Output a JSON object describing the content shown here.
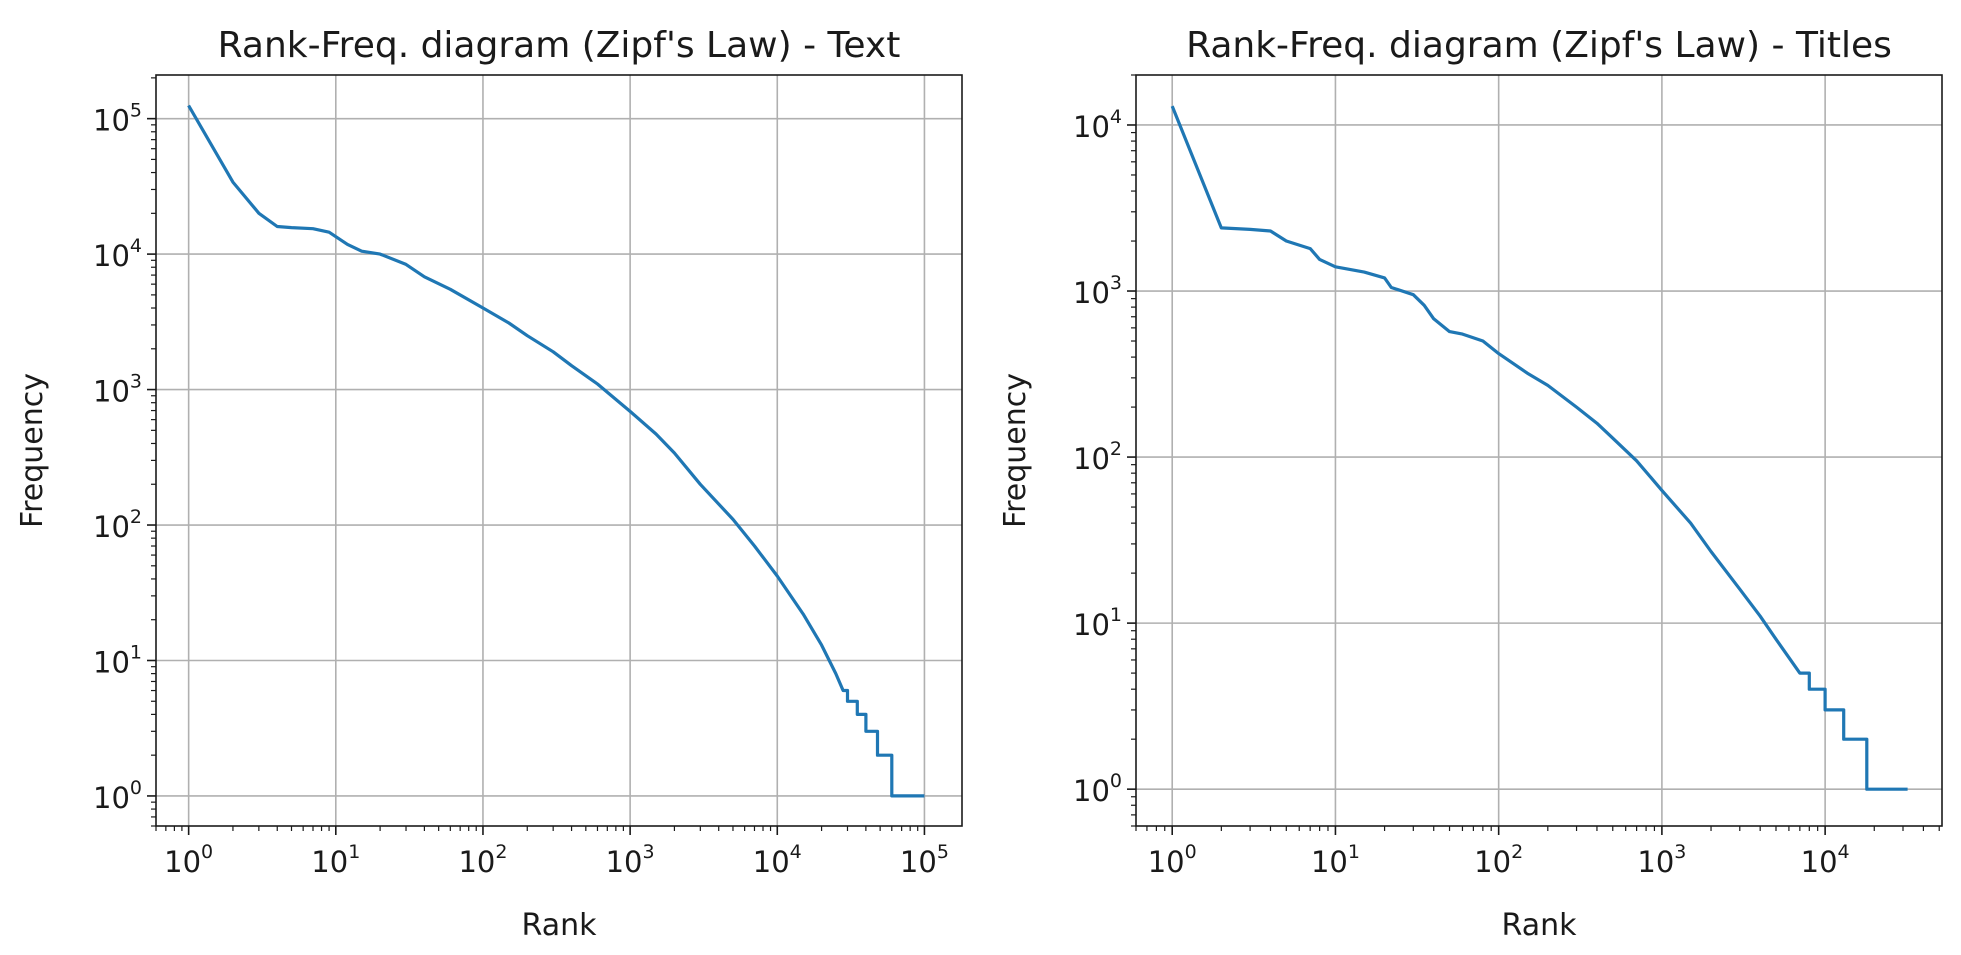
{
  "series_color": "#1f77b4",
  "chart_data": [
    {
      "type": "line",
      "title": "Rank-Freq. diagram (Zipf's Law) - Text",
      "xlabel": "Rank",
      "ylabel": "Frequency",
      "xscale": "log",
      "yscale": "log",
      "xlim": [
        0.6,
        180000
      ],
      "ylim": [
        0.6,
        210000
      ],
      "grid": true,
      "x_ticks": [
        {
          "base": "10",
          "exp": "0",
          "value": 1
        },
        {
          "base": "10",
          "exp": "1",
          "value": 10
        },
        {
          "base": "10",
          "exp": "2",
          "value": 100
        },
        {
          "base": "10",
          "exp": "3",
          "value": 1000
        },
        {
          "base": "10",
          "exp": "4",
          "value": 10000
        },
        {
          "base": "10",
          "exp": "5",
          "value": 100000
        }
      ],
      "y_ticks": [
        {
          "base": "10",
          "exp": "0",
          "value": 1
        },
        {
          "base": "10",
          "exp": "1",
          "value": 10
        },
        {
          "base": "10",
          "exp": "2",
          "value": 100
        },
        {
          "base": "10",
          "exp": "3",
          "value": 1000
        },
        {
          "base": "10",
          "exp": "4",
          "value": 10000
        },
        {
          "base": "10",
          "exp": "5",
          "value": 100000
        }
      ],
      "series": [
        {
          "points": [
            [
              1,
              125000
            ],
            [
              2,
              34000
            ],
            [
              3,
              20000
            ],
            [
              4,
              16000
            ],
            [
              5,
              15700
            ],
            [
              7,
              15400
            ],
            [
              9,
              14500
            ],
            [
              12,
              11800
            ],
            [
              15,
              10500
            ],
            [
              20,
              10000
            ],
            [
              30,
              8400
            ],
            [
              40,
              6800
            ],
            [
              60,
              5500
            ],
            [
              100,
              4000
            ],
            [
              150,
              3100
            ],
            [
              200,
              2500
            ],
            [
              300,
              1900
            ],
            [
              400,
              1500
            ],
            [
              600,
              1100
            ],
            [
              1000,
              690
            ],
            [
              1500,
              470
            ],
            [
              2000,
              340
            ],
            [
              3000,
              200
            ],
            [
              5000,
              110
            ],
            [
              7000,
              70
            ],
            [
              10000,
              42
            ],
            [
              15000,
              22
            ],
            [
              20000,
              13
            ],
            [
              25000,
              8
            ],
            [
              28000,
              6
            ],
            [
              30000,
              6
            ],
            [
              30000,
              5
            ],
            [
              35000,
              5
            ],
            [
              35000,
              4
            ],
            [
              40000,
              4
            ],
            [
              40000,
              3
            ],
            [
              48000,
              3
            ],
            [
              48000,
              2
            ],
            [
              60000,
              2
            ],
            [
              60000,
              1
            ],
            [
              100000,
              1
            ]
          ]
        }
      ]
    },
    {
      "type": "line",
      "title": "Rank-Freq. diagram (Zipf's Law) - Titles",
      "xlabel": "Rank",
      "ylabel": "Frequency",
      "xscale": "log",
      "yscale": "log",
      "xlim": [
        0.6,
        52000
      ],
      "ylim": [
        0.6,
        20000
      ],
      "grid": true,
      "x_ticks": [
        {
          "base": "10",
          "exp": "0",
          "value": 1
        },
        {
          "base": "10",
          "exp": "1",
          "value": 10
        },
        {
          "base": "10",
          "exp": "2",
          "value": 100
        },
        {
          "base": "10",
          "exp": "3",
          "value": 1000
        },
        {
          "base": "10",
          "exp": "4",
          "value": 10000
        }
      ],
      "y_ticks": [
        {
          "base": "10",
          "exp": "0",
          "value": 1
        },
        {
          "base": "10",
          "exp": "1",
          "value": 10
        },
        {
          "base": "10",
          "exp": "2",
          "value": 100
        },
        {
          "base": "10",
          "exp": "3",
          "value": 1000
        },
        {
          "base": "10",
          "exp": "4",
          "value": 10000
        }
      ],
      "series": [
        {
          "points": [
            [
              1,
              13000
            ],
            [
              2,
              2400
            ],
            [
              3,
              2350
            ],
            [
              4,
              2300
            ],
            [
              5,
              2000
            ],
            [
              7,
              1800
            ],
            [
              8,
              1550
            ],
            [
              10,
              1400
            ],
            [
              15,
              1300
            ],
            [
              20,
              1200
            ],
            [
              22,
              1050
            ],
            [
              30,
              950
            ],
            [
              35,
              820
            ],
            [
              40,
              680
            ],
            [
              50,
              570
            ],
            [
              60,
              550
            ],
            [
              80,
              500
            ],
            [
              100,
              420
            ],
            [
              150,
              320
            ],
            [
              200,
              270
            ],
            [
              300,
              200
            ],
            [
              400,
              160
            ],
            [
              500,
              130
            ],
            [
              700,
              95
            ],
            [
              1000,
              63
            ],
            [
              1500,
              40
            ],
            [
              2000,
              27
            ],
            [
              3000,
              16
            ],
            [
              4000,
              11
            ],
            [
              5000,
              8
            ],
            [
              7000,
              5
            ],
            [
              8000,
              5
            ],
            [
              8000,
              4
            ],
            [
              10000,
              4
            ],
            [
              10000,
              3
            ],
            [
              13000,
              3
            ],
            [
              13000,
              2
            ],
            [
              18000,
              2
            ],
            [
              18000,
              1
            ],
            [
              32000,
              1
            ]
          ]
        }
      ]
    }
  ]
}
